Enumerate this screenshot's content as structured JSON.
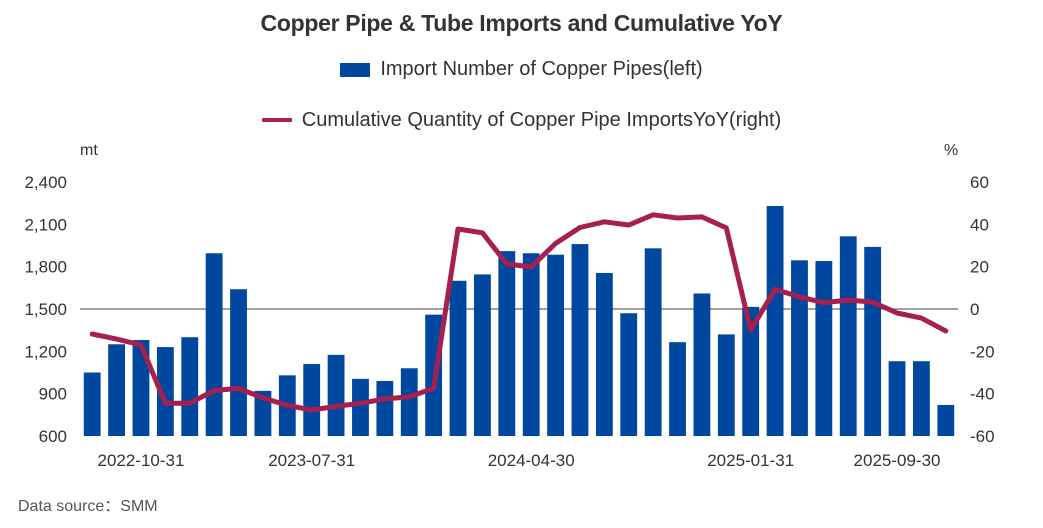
{
  "chart_data": {
    "type": "bar",
    "title": "Copper Pipe & Tube Imports and Cumulative YoY",
    "legend": [
      {
        "name": "Import Number of Copper Pipes(left)",
        "kind": "bar",
        "color": "#0047A0"
      },
      {
        "name": "Cumulative Quantity of Copper Pipe ImportsYoY(right)",
        "kind": "line",
        "color": "#A6204F"
      }
    ],
    "legend_placement": "top-center",
    "left_axis": {
      "unit": "mt",
      "min": 600,
      "max": 2400,
      "ticks": [
        600,
        900,
        1200,
        1500,
        1800,
        2100,
        2400
      ],
      "tick_labels": [
        "600",
        "900",
        "1,200",
        "1,500",
        "1,800",
        "2,100",
        "2,400"
      ]
    },
    "right_axis": {
      "unit": "%",
      "min": -60,
      "max": 60,
      "ticks": [
        -60,
        -40,
        -20,
        0,
        20,
        40,
        60
      ],
      "tick_labels": [
        "-60",
        "-40",
        "-20",
        "0",
        "20",
        "40",
        "60"
      ]
    },
    "reference_line": {
      "left_value": 1500,
      "right_value": 0
    },
    "grid": false,
    "x_tick_labels": [
      {
        "index": 2,
        "label": "2022-10-31"
      },
      {
        "index": 9,
        "label": "2023-07-31"
      },
      {
        "index": 18,
        "label": "2024-04-30"
      },
      {
        "index": 27,
        "label": "2025-01-31"
      },
      {
        "index": 33,
        "label": "2025-09-30"
      }
    ],
    "series": [
      {
        "name": "Import Number of Copper Pipes(left)",
        "type": "bar",
        "axis": "left",
        "values": [
          1050,
          1250,
          1280,
          1230,
          1300,
          1895,
          1640,
          920,
          1030,
          1110,
          1175,
          1005,
          990,
          1080,
          1460,
          1700,
          1745,
          1910,
          1895,
          1885,
          1960,
          1755,
          1470,
          1930,
          1265,
          1610,
          1320,
          1515,
          2230,
          1845,
          1840,
          2015,
          1940,
          1130,
          1130,
          820
        ]
      },
      {
        "name": "Cumulative Quantity of Copper Pipe ImportsYoY(right)",
        "type": "line",
        "axis": "right",
        "values": [
          -11.8,
          -14.2,
          -17,
          -44.5,
          -44.5,
          -38.5,
          -37.5,
          -42,
          -45.5,
          -47.7,
          -46,
          -44.5,
          -42.5,
          -41.5,
          -37.5,
          37.8,
          36,
          21.3,
          19.9,
          31,
          38.5,
          41.2,
          39.7,
          44.5,
          43,
          43.5,
          38.3,
          -9.9,
          9.3,
          5.7,
          3,
          4.2,
          3.3,
          -1.9,
          -4.3,
          -10.4
        ]
      }
    ]
  },
  "footer": {
    "source": "Data source：SMM"
  }
}
